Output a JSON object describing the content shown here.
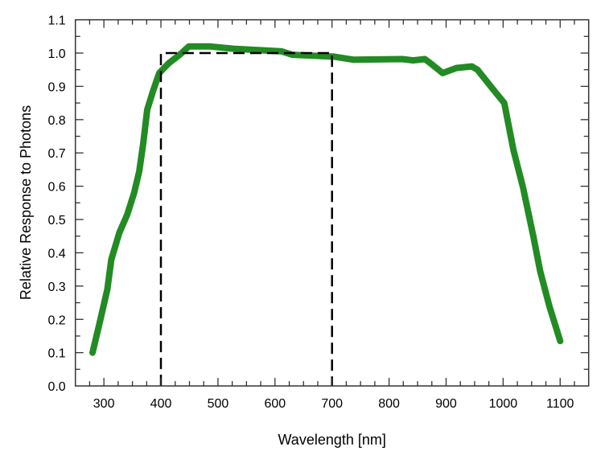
{
  "chart_data": {
    "type": "line",
    "title": "",
    "xlabel": "Wavelength [nm]",
    "ylabel": "Relative Response to Photons",
    "xlim": [
      250,
      1150
    ],
    "ylim": [
      0,
      1.1
    ],
    "xticks": [
      300,
      400,
      500,
      600,
      700,
      800,
      900,
      1000,
      1100
    ],
    "yticks": [
      "0.0",
      "0.1",
      "0.2",
      "0.3",
      "0.4",
      "0.5",
      "0.6",
      "0.7",
      "0.8",
      "0.9",
      "1.0",
      "1.1"
    ],
    "grid": false,
    "series": [
      {
        "color": "#238b23",
        "style": "solid-thick",
        "x": [
          280,
          292,
          306,
          313,
          327,
          341,
          353,
          362,
          369,
          376,
          386,
          397,
          414,
          433,
          449,
          485,
          527,
          612,
          630,
          696,
          701,
          738,
          823,
          842,
          863,
          875,
          894,
          918,
          945,
          955,
          983,
          1002,
          1018,
          1035,
          1053,
          1065,
          1081,
          1100
        ],
        "y": [
          0.1,
          0.186,
          0.29,
          0.38,
          0.46,
          0.515,
          0.58,
          0.645,
          0.73,
          0.83,
          0.885,
          0.94,
          0.97,
          0.995,
          1.02,
          1.02,
          1.013,
          1.005,
          0.995,
          0.99,
          0.99,
          0.98,
          0.982,
          0.978,
          0.982,
          0.966,
          0.94,
          0.955,
          0.96,
          0.95,
          0.89,
          0.85,
          0.71,
          0.595,
          0.45,
          0.345,
          0.24,
          0.135
        ]
      },
      {
        "color": "#000000",
        "style": "dashed",
        "x": [
          400,
          400,
          700,
          700
        ],
        "y": [
          0,
          1.0,
          1.0,
          0
        ]
      }
    ]
  }
}
